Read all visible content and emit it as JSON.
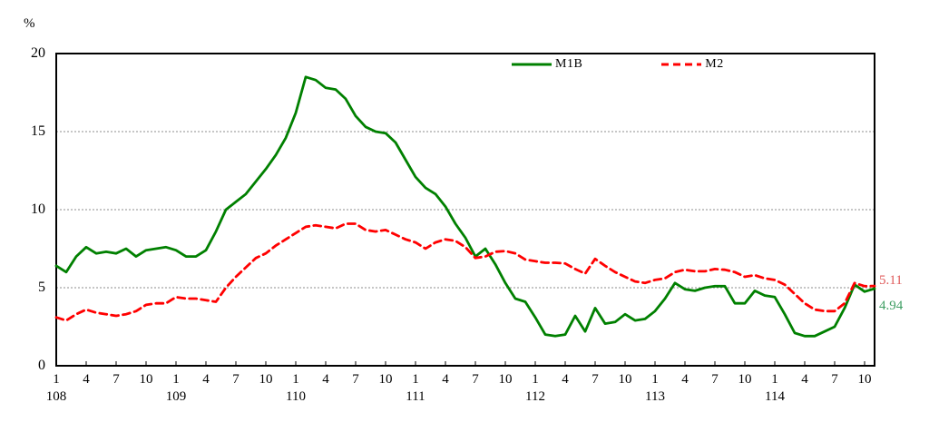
{
  "chart_data": {
    "type": "line",
    "title": "",
    "y_axis": {
      "unit_label": "%",
      "ticks": [
        0,
        5,
        10,
        15,
        20
      ],
      "ylim": [
        0,
        20
      ],
      "gridlines": [
        5,
        10,
        15
      ],
      "grid_color": "#8c8c8c"
    },
    "x_axis": {
      "start": "108-01",
      "end": "114-11",
      "point_count": 83,
      "quarter_ticks": [
        {
          "m": 0,
          "label": "1"
        },
        {
          "m": 3,
          "label": "4"
        },
        {
          "m": 6,
          "label": "7"
        },
        {
          "m": 9,
          "label": "10"
        },
        {
          "m": 12,
          "label": "1"
        },
        {
          "m": 15,
          "label": "4"
        },
        {
          "m": 18,
          "label": "7"
        },
        {
          "m": 21,
          "label": "10"
        },
        {
          "m": 24,
          "label": "1"
        },
        {
          "m": 27,
          "label": "4"
        },
        {
          "m": 30,
          "label": "7"
        },
        {
          "m": 33,
          "label": "10"
        },
        {
          "m": 36,
          "label": "1"
        },
        {
          "m": 39,
          "label": "4"
        },
        {
          "m": 42,
          "label": "7"
        },
        {
          "m": 45,
          "label": "10"
        },
        {
          "m": 48,
          "label": "1"
        },
        {
          "m": 51,
          "label": "4"
        },
        {
          "m": 54,
          "label": "7"
        },
        {
          "m": 57,
          "label": "10"
        },
        {
          "m": 60,
          "label": "1"
        },
        {
          "m": 63,
          "label": "4"
        },
        {
          "m": 66,
          "label": "7"
        },
        {
          "m": 69,
          "label": "10"
        },
        {
          "m": 72,
          "label": "1"
        },
        {
          "m": 75,
          "label": "4"
        },
        {
          "m": 78,
          "label": "7"
        },
        {
          "m": 81,
          "label": "10"
        }
      ],
      "year_labels": [
        {
          "m": 0,
          "label": "108"
        },
        {
          "m": 12,
          "label": "109"
        },
        {
          "m": 24,
          "label": "110"
        },
        {
          "m": 36,
          "label": "111"
        },
        {
          "m": 48,
          "label": "112"
        },
        {
          "m": 60,
          "label": "113"
        },
        {
          "m": 72,
          "label": "114"
        }
      ]
    },
    "legend": {
      "position": "top-center",
      "entries": [
        "M1B",
        "M2"
      ]
    },
    "series": [
      {
        "name": "M1B",
        "color": "#008000",
        "style": "solid",
        "end_value_label": "4.94",
        "end_label_color": "#3f9e63",
        "values": [
          6.4,
          6.0,
          7.0,
          7.6,
          7.2,
          7.3,
          7.2,
          7.5,
          7.0,
          7.4,
          7.5,
          7.6,
          7.4,
          7.0,
          7.0,
          7.4,
          8.6,
          10.0,
          10.5,
          11.0,
          11.8,
          12.6,
          13.5,
          14.6,
          16.2,
          18.5,
          18.3,
          17.8,
          17.7,
          17.1,
          16.0,
          15.3,
          15.0,
          14.9,
          14.3,
          13.2,
          12.1,
          11.4,
          11.0,
          10.2,
          9.1,
          8.2,
          7.0,
          7.5,
          6.5,
          5.3,
          4.3,
          4.1,
          3.1,
          2.0,
          1.9,
          2.0,
          3.2,
          2.2,
          3.7,
          2.7,
          2.8,
          3.3,
          2.9,
          3.0,
          3.5,
          4.3,
          5.3,
          4.9,
          4.8,
          5.0,
          5.1,
          5.1,
          4.0,
          4.0,
          4.8,
          4.5,
          4.4,
          3.3,
          2.1,
          1.9,
          1.9,
          2.2,
          2.5,
          3.7,
          5.2,
          4.75,
          4.94
        ]
      },
      {
        "name": "M2",
        "color": "#ff0000",
        "style": "dashed",
        "end_value_label": "5.11",
        "end_label_color": "#e05c5c",
        "values": [
          3.1,
          2.9,
          3.3,
          3.6,
          3.4,
          3.3,
          3.2,
          3.3,
          3.5,
          3.9,
          4.0,
          4.0,
          4.4,
          4.3,
          4.3,
          4.2,
          4.1,
          5.0,
          5.7,
          6.3,
          6.9,
          7.2,
          7.7,
          8.1,
          8.5,
          8.9,
          9.0,
          8.9,
          8.8,
          9.1,
          9.1,
          8.7,
          8.6,
          8.7,
          8.4,
          8.1,
          7.9,
          7.5,
          7.9,
          8.1,
          8.0,
          7.6,
          6.9,
          7.0,
          7.3,
          7.35,
          7.2,
          6.8,
          6.7,
          6.6,
          6.6,
          6.55,
          6.2,
          5.9,
          6.85,
          6.4,
          6.0,
          5.7,
          5.4,
          5.3,
          5.5,
          5.6,
          6.0,
          6.15,
          6.05,
          6.05,
          6.2,
          6.15,
          6.0,
          5.7,
          5.8,
          5.6,
          5.5,
          5.2,
          4.6,
          4.0,
          3.6,
          3.5,
          3.5,
          4.0,
          5.3,
          5.1,
          5.11
        ]
      }
    ]
  }
}
